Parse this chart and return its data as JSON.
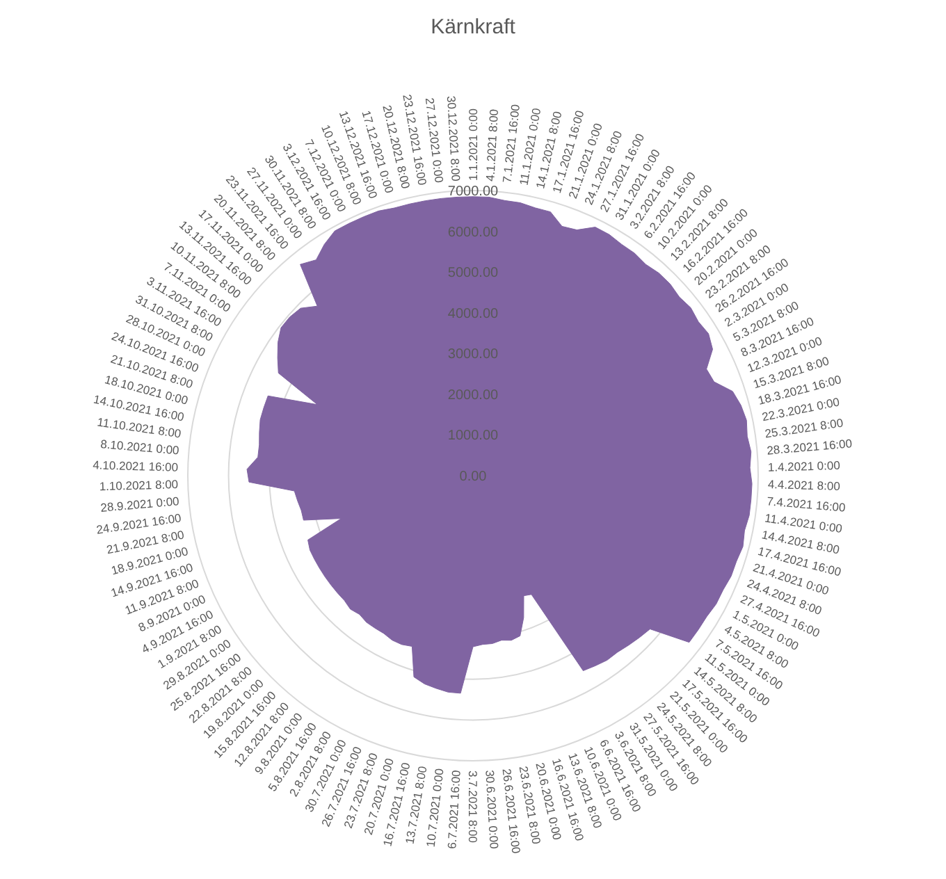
{
  "chart_data": {
    "type": "radar",
    "title": "Kärnkraft",
    "categories": [
      "1.1.2021 0:00",
      "4.1.2021 8:00",
      "7.1.2021 16:00",
      "11.1.2021 0:00",
      "14.1.2021 8:00",
      "17.1.2021 16:00",
      "21.1.2021 0:00",
      "24.1.2021 8:00",
      "27.1.2021 16:00",
      "31.1.2021 0:00",
      "3.2.2021 8:00",
      "6.2.2021 16:00",
      "10.2.2021 0:00",
      "13.2.2021 8:00",
      "16.2.2021 16:00",
      "20.2.2021 0:00",
      "23.2.2021 8:00",
      "26.2.2021 16:00",
      "2.3.2021 0:00",
      "5.3.2021 8:00",
      "8.3.2021 16:00",
      "12.3.2021 0:00",
      "15.3.2021 8:00",
      "18.3.2021 16:00",
      "22.3.2021 0:00",
      "25.3.2021 8:00",
      "28.3.2021 16:00",
      "1.4.2021 0:00",
      "4.4.2021 8:00",
      "7.4.2021 16:00",
      "11.4.2021 0:00",
      "14.4.2021 8:00",
      "17.4.2021 16:00",
      "21.4.2021 0:00",
      "24.4.2021 8:00",
      "27.4.2021 16:00",
      "1.5.2021 0:00",
      "4.5.2021 8:00",
      "7.5.2021 16:00",
      "11.5.2021 0:00",
      "14.5.2021 8:00",
      "17.5.2021 16:00",
      "21.5.2021 0:00",
      "24.5.2021 8:00",
      "27.5.2021 16:00",
      "31.5.2021 0:00",
      "3.6.2021 8:00",
      "6.6.2021 16:00",
      "10.6.2021 0:00",
      "13.6.2021 8:00",
      "16.6.2021 16:00",
      "20.6.2021 0:00",
      "23.6.2021 8:00",
      "26.6.2021 16:00",
      "30.6.2021 0:00",
      "3.7.2021 8:00",
      "6.7.2021 16:00",
      "10.7.2021 0:00",
      "13.7.2021 8:00",
      "16.7.2021 16:00",
      "20.7.2021 0:00",
      "23.7.2021 8:00",
      "26.7.2021 16:00",
      "30.7.2021 0:00",
      "2.8.2021 8:00",
      "5.8.2021 16:00",
      "9.8.2021 0:00",
      "12.8.2021 8:00",
      "15.8.2021 16:00",
      "19.8.2021 0:00",
      "22.8.2021 8:00",
      "25.8.2021 16:00",
      "29.8.2021 0:00",
      "1.9.2021 8:00",
      "4.9.2021 16:00",
      "8.9.2021 0:00",
      "11.9.2021 8:00",
      "14.9.2021 16:00",
      "18.9.2021 0:00",
      "21.9.2021 8:00",
      "24.9.2021 16:00",
      "28.9.2021 0:00",
      "1.10.2021 8:00",
      "4.10.2021 16:00",
      "8.10.2021 0:00",
      "11.10.2021 8:00",
      "14.10.2021 16:00",
      "18.10.2021 0:00",
      "21.10.2021 8:00",
      "24.10.2021 16:00",
      "28.10.2021 0:00",
      "31.10.2021 8:00",
      "3.11.2021 16:00",
      "7.11.2021 0:00",
      "10.11.2021 8:00",
      "13.11.2021 16:00",
      "17.11.2021 0:00",
      "20.11.2021 8:00",
      "23.11.2021 16:00",
      "27.11.2021 0:00",
      "30.11.2021 8:00",
      "3.12.2021 16:00",
      "7.12.2021 0:00",
      "10.12.2021 8:00",
      "13.12.2021 16:00",
      "17.12.2021 0:00",
      "20.12.2021 8:00",
      "23.12.2021 16:00",
      "27.12.2021 0:00",
      "30.12.2021 8:00"
    ],
    "series": [
      {
        "color": "#8064a2",
        "values": [
          6850,
          6850,
          6800,
          6800,
          6750,
          6750,
          6500,
          6550,
          6800,
          6800,
          6750,
          6750,
          6700,
          6750,
          6750,
          6700,
          6750,
          6700,
          6750,
          6650,
          6300,
          6350,
          6700,
          6800,
          6850,
          6800,
          6850,
          6800,
          6850,
          6850,
          6850,
          6800,
          6850,
          6800,
          6800,
          6750,
          6750,
          6700,
          6700,
          6700,
          5750,
          5700,
          5650,
          5600,
          5600,
          5550,
          5500,
          3250,
          3200,
          3700,
          4100,
          4150,
          4100,
          4150,
          4150,
          4200,
          5350,
          5350,
          5300,
          5250,
          5150,
          4450,
          4500,
          4500,
          4450,
          4450,
          4450,
          4400,
          4450,
          4400,
          4400,
          4400,
          4400,
          4400,
          4400,
          4400,
          4350,
          3400,
          4300,
          4300,
          4350,
          4400,
          5500,
          5550,
          5300,
          5300,
          5350,
          5400,
          5400,
          5400,
          4200,
          5400,
          5600,
          5800,
          5950,
          5950,
          5900,
          5650,
          6700,
          6550,
          6750,
          6900,
          6900,
          6900,
          6900,
          6850,
          6850,
          6850,
          6850,
          6850
        ]
      }
    ],
    "ylim": [
      0,
      7000
    ],
    "yticks": [
      {
        "value": 0,
        "label": "0.00"
      },
      {
        "value": 1000,
        "label": "1000.00"
      },
      {
        "value": 2000,
        "label": "2000.00"
      },
      {
        "value": 3000,
        "label": "3000.00"
      },
      {
        "value": 4000,
        "label": "4000.00"
      },
      {
        "value": 5000,
        "label": "5000.00"
      },
      {
        "value": 6000,
        "label": "6000.00"
      },
      {
        "value": 7000,
        "label": "7000.00"
      }
    ],
    "grid": true
  }
}
